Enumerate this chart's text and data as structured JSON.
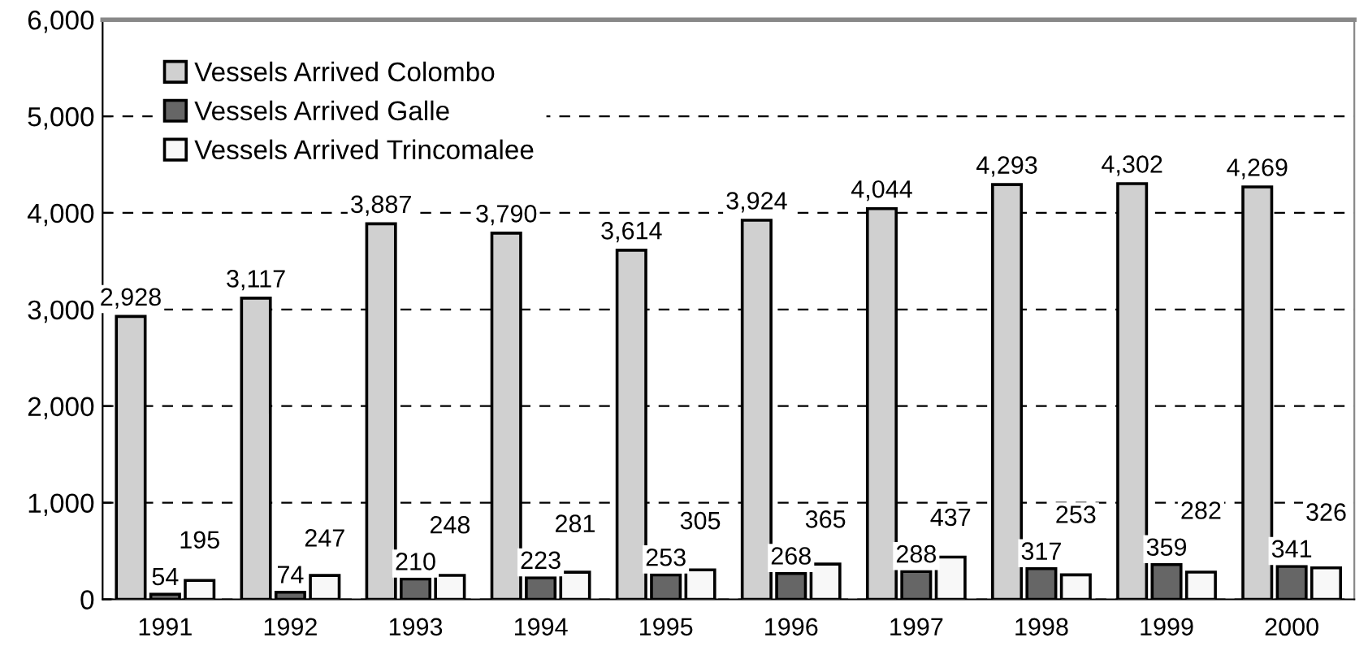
{
  "chart_data": {
    "type": "bar",
    "categories": [
      "1991",
      "1992",
      "1993",
      "1994",
      "1995",
      "1996",
      "1997",
      "1998",
      "1999",
      "2000"
    ],
    "series": [
      {
        "name": "Vessels Arrived Colombo",
        "color": "#d0d0d0",
        "values": [
          2928,
          3117,
          3887,
          3790,
          3614,
          3924,
          4044,
          4293,
          4302,
          4269
        ],
        "value_labels": [
          "2,928",
          "3,117",
          "3,887",
          "3,790",
          "3,614",
          "3,924",
          "4,044",
          "4,293",
          "4,302",
          "4,269"
        ]
      },
      {
        "name": "Vessels Arrived Galle",
        "color": "#666666",
        "values": [
          54,
          74,
          210,
          223,
          253,
          268,
          288,
          317,
          359,
          341
        ],
        "value_labels": [
          "54",
          "74",
          "210",
          "223",
          "253",
          "268",
          "288",
          "317",
          "359",
          "341"
        ]
      },
      {
        "name": "Vessels Arrived Trincomalee",
        "color": "#f8f8f8",
        "values": [
          195,
          247,
          248,
          281,
          305,
          365,
          437,
          253,
          282,
          326
        ],
        "value_labels": [
          "195",
          "247",
          "248",
          "281",
          "305",
          "365",
          "437",
          "253",
          "282",
          "326"
        ]
      }
    ],
    "ylim": [
      0,
      6000
    ],
    "yticks": [
      {
        "value": 0,
        "label": "0"
      },
      {
        "value": 1000,
        "label": "1,000"
      },
      {
        "value": 2000,
        "label": "2,000"
      },
      {
        "value": 3000,
        "label": "3,000"
      },
      {
        "value": 4000,
        "label": "4,000"
      },
      {
        "value": 5000,
        "label": "5,000"
      },
      {
        "value": 6000,
        "label": "6,000"
      }
    ],
    "grid": "y",
    "legend": "top left"
  }
}
